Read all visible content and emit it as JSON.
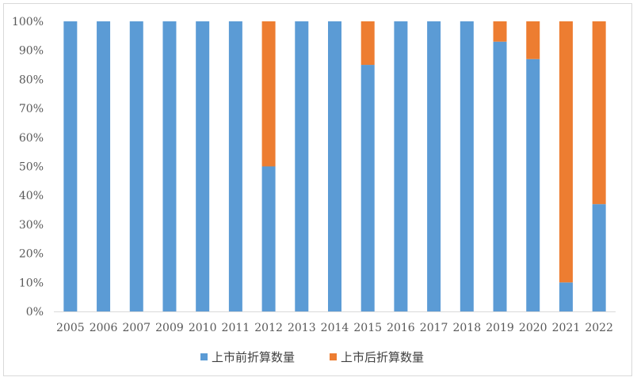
{
  "chart_data": {
    "type": "bar",
    "stacked": "percent",
    "categories": [
      "2005",
      "2006",
      "2007",
      "2009",
      "2010",
      "2011",
      "2012",
      "2013",
      "2014",
      "2015",
      "2016",
      "2017",
      "2018",
      "2019",
      "2020",
      "2021",
      "2022"
    ],
    "series": [
      {
        "name": "上市前折算数量",
        "color": "#5b9bd5",
        "values": [
          100,
          100,
          100,
          100,
          100,
          100,
          50,
          100,
          100,
          85,
          100,
          100,
          100,
          93,
          87,
          10,
          37
        ]
      },
      {
        "name": "上市后折算数量",
        "color": "#ed7d31",
        "values": [
          0,
          0,
          0,
          0,
          0,
          0,
          50,
          0,
          0,
          15,
          0,
          0,
          0,
          7,
          13,
          90,
          63
        ]
      }
    ],
    "yticks": [
      "0%",
      "10%",
      "20%",
      "30%",
      "40%",
      "50%",
      "60%",
      "70%",
      "80%",
      "90%",
      "100%"
    ],
    "ylim": [
      0,
      100
    ],
    "grid": false,
    "legend_position": "bottom"
  }
}
